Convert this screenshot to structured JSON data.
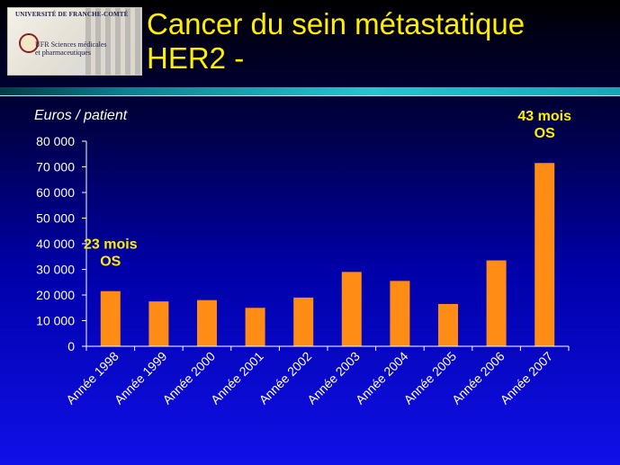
{
  "slide": {
    "title_line1": "Cancer du sein métastatique",
    "title_line2": "HER2 -"
  },
  "logo": {
    "university": "UNIVERSITÉ DE FRANCHE-COMTÉ",
    "line1": "UFR Sciences médicales",
    "line2": "et pharmaceutiques"
  },
  "colors": {
    "title": "#ffee00",
    "bar": "#ff8c14",
    "annotation": "#ffee00",
    "axis_text": "#ffffff"
  },
  "chart_data": {
    "type": "bar",
    "ylabel": "Euros / patient",
    "xlabel": "",
    "categories": [
      "Année 1998",
      "Année 1999",
      "Année 2000",
      "Année 2001",
      "Année 2002",
      "Année 2003",
      "Année 2004",
      "Année 2005",
      "Année 2006",
      "Année 2007"
    ],
    "values": [
      21500,
      17500,
      18000,
      15000,
      19000,
      29000,
      25500,
      16500,
      33500,
      71500
    ],
    "ylim": [
      0,
      80000
    ],
    "yticks": [
      "0",
      "10 000",
      "20 000",
      "30 000",
      "40 000",
      "50 000",
      "60 000",
      "70 000",
      "80 000"
    ],
    "grid": false,
    "annotations": [
      {
        "category": "Année 1998",
        "lines": [
          "23 mois",
          "OS"
        ]
      },
      {
        "category": "Année 2007",
        "lines": [
          "43 mois",
          "OS"
        ]
      }
    ]
  }
}
